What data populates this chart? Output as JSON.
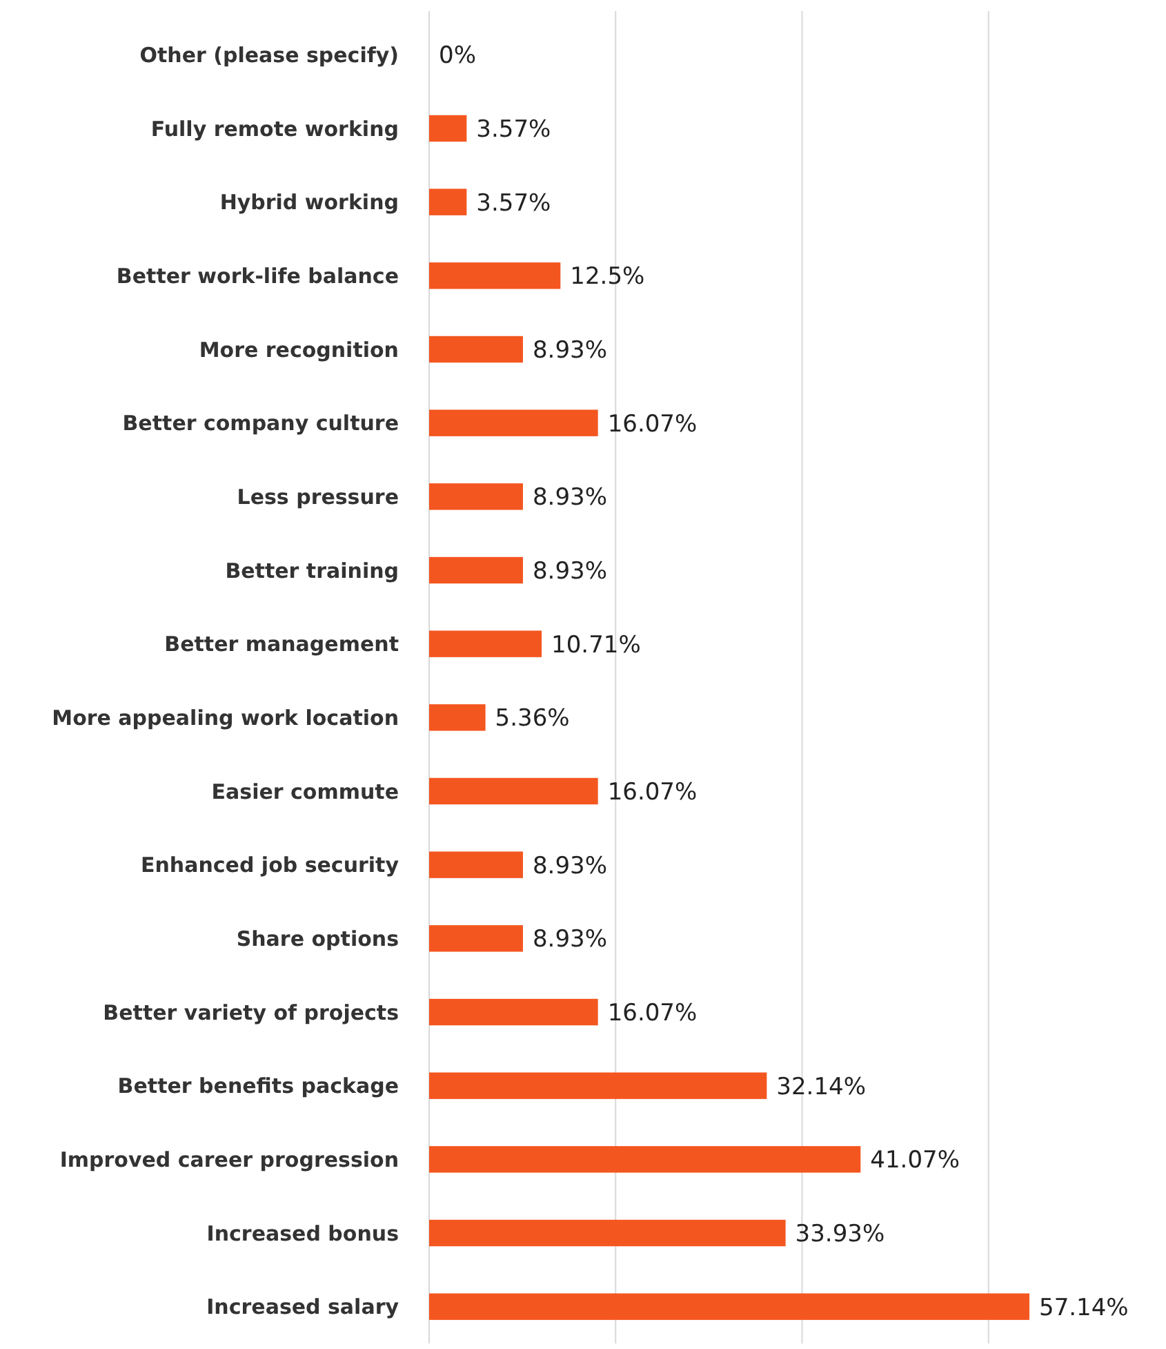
{
  "chart_data": {
    "type": "bar",
    "orientation": "horizontal",
    "categories": [
      "Other (please specify)",
      "Fully remote working",
      "Hybrid working",
      "Better work-life balance",
      "More recognition",
      "Better company culture",
      "Less pressure",
      "Better training",
      "Better management",
      "More appealing work location",
      "Easier commute",
      "Enhanced job security",
      "Share options",
      "Better variety of projects",
      "Better benefits package",
      "Improved career progression",
      "Increased bonus",
      "Increased salary"
    ],
    "values": [
      0,
      3.57,
      3.57,
      12.5,
      8.93,
      16.07,
      8.93,
      8.93,
      10.71,
      5.36,
      16.07,
      8.93,
      8.93,
      16.07,
      32.14,
      41.07,
      33.93,
      57.14
    ],
    "value_labels": [
      "0%",
      "3.57%",
      "3.57%",
      "12.5%",
      "8.93%",
      "16.07%",
      "8.93%",
      "8.93%",
      "10.71%",
      "5.36%",
      "16.07%",
      "8.93%",
      "8.93%",
      "16.07%",
      "32.14%",
      "41.07%",
      "33.93%",
      "57.14%"
    ],
    "color": "#f4561f",
    "xticks": [
      {
        "value": 0,
        "label": null
      },
      {
        "value": 17.75,
        "label": null
      },
      {
        "value": 35.5,
        "label": null
      },
      {
        "value": 53.25,
        "label": null
      }
    ],
    "grid": "x",
    "tick_labels": "y"
  }
}
